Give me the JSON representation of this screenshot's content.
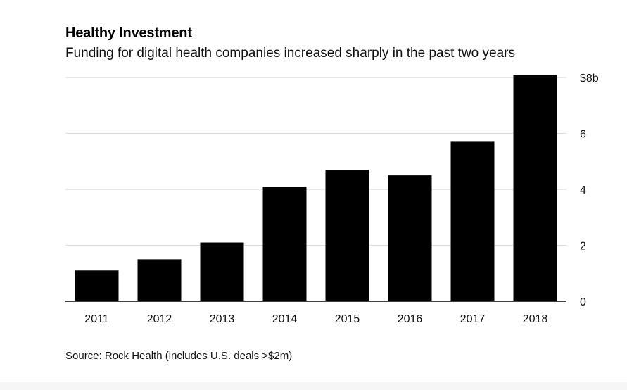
{
  "header": {
    "title": "Healthy Investment",
    "subtitle": "Funding for digital health companies increased sharply in the past two years"
  },
  "footer": {
    "source": "Source: Rock Health (includes U.S. deals >$2m)"
  },
  "chart_data": {
    "type": "bar",
    "title": "Healthy Investment",
    "subtitle": "Funding for digital health companies increased sharply in the past two years",
    "categories": [
      "2011",
      "2012",
      "2013",
      "2014",
      "2015",
      "2016",
      "2017",
      "2018"
    ],
    "values": [
      1.1,
      1.5,
      2.1,
      4.1,
      4.7,
      4.5,
      5.7,
      8.1
    ],
    "ylim": [
      0,
      8
    ],
    "yticks": [
      0,
      2,
      4,
      6,
      8
    ],
    "ytick_labels": [
      "0",
      "2",
      "4",
      "6",
      "$8b"
    ],
    "y_axis_position": "right",
    "grid": true,
    "bar_color": "#000000",
    "grid_color": "#dddddd",
    "source": "Source: Rock Health (includes U.S. deals >$2m)"
  }
}
